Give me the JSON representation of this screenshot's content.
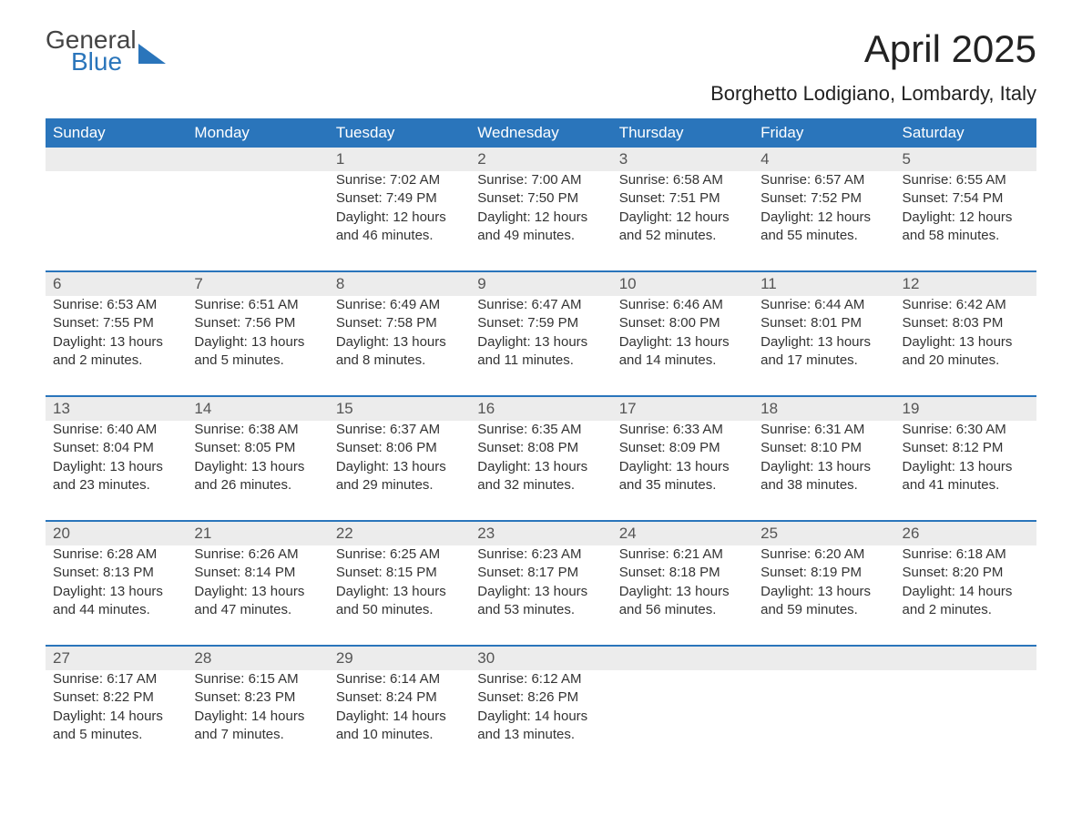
{
  "logo": {
    "line1": "General",
    "line2": "Blue"
  },
  "title": "April 2025",
  "location": "Borghetto Lodigiano, Lombardy, Italy",
  "colors": {
    "header_bg": "#2a75bb",
    "header_text": "#ffffff",
    "daynum_bg": "#ececec",
    "daynum_text": "#555555",
    "body_text": "#333333",
    "rule": "#2a75bb",
    "logo_blue": "#2a75bb"
  },
  "weekdays": [
    "Sunday",
    "Monday",
    "Tuesday",
    "Wednesday",
    "Thursday",
    "Friday",
    "Saturday"
  ],
  "weeks": [
    [
      null,
      null,
      {
        "n": "1",
        "sunrise": "7:02 AM",
        "sunset": "7:49 PM",
        "dayh": "12",
        "daym": "46"
      },
      {
        "n": "2",
        "sunrise": "7:00 AM",
        "sunset": "7:50 PM",
        "dayh": "12",
        "daym": "49"
      },
      {
        "n": "3",
        "sunrise": "6:58 AM",
        "sunset": "7:51 PM",
        "dayh": "12",
        "daym": "52"
      },
      {
        "n": "4",
        "sunrise": "6:57 AM",
        "sunset": "7:52 PM",
        "dayh": "12",
        "daym": "55"
      },
      {
        "n": "5",
        "sunrise": "6:55 AM",
        "sunset": "7:54 PM",
        "dayh": "12",
        "daym": "58"
      }
    ],
    [
      {
        "n": "6",
        "sunrise": "6:53 AM",
        "sunset": "7:55 PM",
        "dayh": "13",
        "daym": "2"
      },
      {
        "n": "7",
        "sunrise": "6:51 AM",
        "sunset": "7:56 PM",
        "dayh": "13",
        "daym": "5"
      },
      {
        "n": "8",
        "sunrise": "6:49 AM",
        "sunset": "7:58 PM",
        "dayh": "13",
        "daym": "8"
      },
      {
        "n": "9",
        "sunrise": "6:47 AM",
        "sunset": "7:59 PM",
        "dayh": "13",
        "daym": "11"
      },
      {
        "n": "10",
        "sunrise": "6:46 AM",
        "sunset": "8:00 PM",
        "dayh": "13",
        "daym": "14"
      },
      {
        "n": "11",
        "sunrise": "6:44 AM",
        "sunset": "8:01 PM",
        "dayh": "13",
        "daym": "17"
      },
      {
        "n": "12",
        "sunrise": "6:42 AM",
        "sunset": "8:03 PM",
        "dayh": "13",
        "daym": "20"
      }
    ],
    [
      {
        "n": "13",
        "sunrise": "6:40 AM",
        "sunset": "8:04 PM",
        "dayh": "13",
        "daym": "23"
      },
      {
        "n": "14",
        "sunrise": "6:38 AM",
        "sunset": "8:05 PM",
        "dayh": "13",
        "daym": "26"
      },
      {
        "n": "15",
        "sunrise": "6:37 AM",
        "sunset": "8:06 PM",
        "dayh": "13",
        "daym": "29"
      },
      {
        "n": "16",
        "sunrise": "6:35 AM",
        "sunset": "8:08 PM",
        "dayh": "13",
        "daym": "32"
      },
      {
        "n": "17",
        "sunrise": "6:33 AM",
        "sunset": "8:09 PM",
        "dayh": "13",
        "daym": "35"
      },
      {
        "n": "18",
        "sunrise": "6:31 AM",
        "sunset": "8:10 PM",
        "dayh": "13",
        "daym": "38"
      },
      {
        "n": "19",
        "sunrise": "6:30 AM",
        "sunset": "8:12 PM",
        "dayh": "13",
        "daym": "41"
      }
    ],
    [
      {
        "n": "20",
        "sunrise": "6:28 AM",
        "sunset": "8:13 PM",
        "dayh": "13",
        "daym": "44"
      },
      {
        "n": "21",
        "sunrise": "6:26 AM",
        "sunset": "8:14 PM",
        "dayh": "13",
        "daym": "47"
      },
      {
        "n": "22",
        "sunrise": "6:25 AM",
        "sunset": "8:15 PM",
        "dayh": "13",
        "daym": "50"
      },
      {
        "n": "23",
        "sunrise": "6:23 AM",
        "sunset": "8:17 PM",
        "dayh": "13",
        "daym": "53"
      },
      {
        "n": "24",
        "sunrise": "6:21 AM",
        "sunset": "8:18 PM",
        "dayh": "13",
        "daym": "56"
      },
      {
        "n": "25",
        "sunrise": "6:20 AM",
        "sunset": "8:19 PM",
        "dayh": "13",
        "daym": "59"
      },
      {
        "n": "26",
        "sunrise": "6:18 AM",
        "sunset": "8:20 PM",
        "dayh": "14",
        "daym": "2"
      }
    ],
    [
      {
        "n": "27",
        "sunrise": "6:17 AM",
        "sunset": "8:22 PM",
        "dayh": "14",
        "daym": "5"
      },
      {
        "n": "28",
        "sunrise": "6:15 AM",
        "sunset": "8:23 PM",
        "dayh": "14",
        "daym": "7"
      },
      {
        "n": "29",
        "sunrise": "6:14 AM",
        "sunset": "8:24 PM",
        "dayh": "14",
        "daym": "10"
      },
      {
        "n": "30",
        "sunrise": "6:12 AM",
        "sunset": "8:26 PM",
        "dayh": "14",
        "daym": "13"
      },
      null,
      null,
      null
    ]
  ],
  "labels": {
    "sunrise": "Sunrise: ",
    "sunset": "Sunset: ",
    "daylight_a": "Daylight: ",
    "daylight_b": " hours",
    "daylight_c": "and ",
    "daylight_d": " minutes."
  }
}
